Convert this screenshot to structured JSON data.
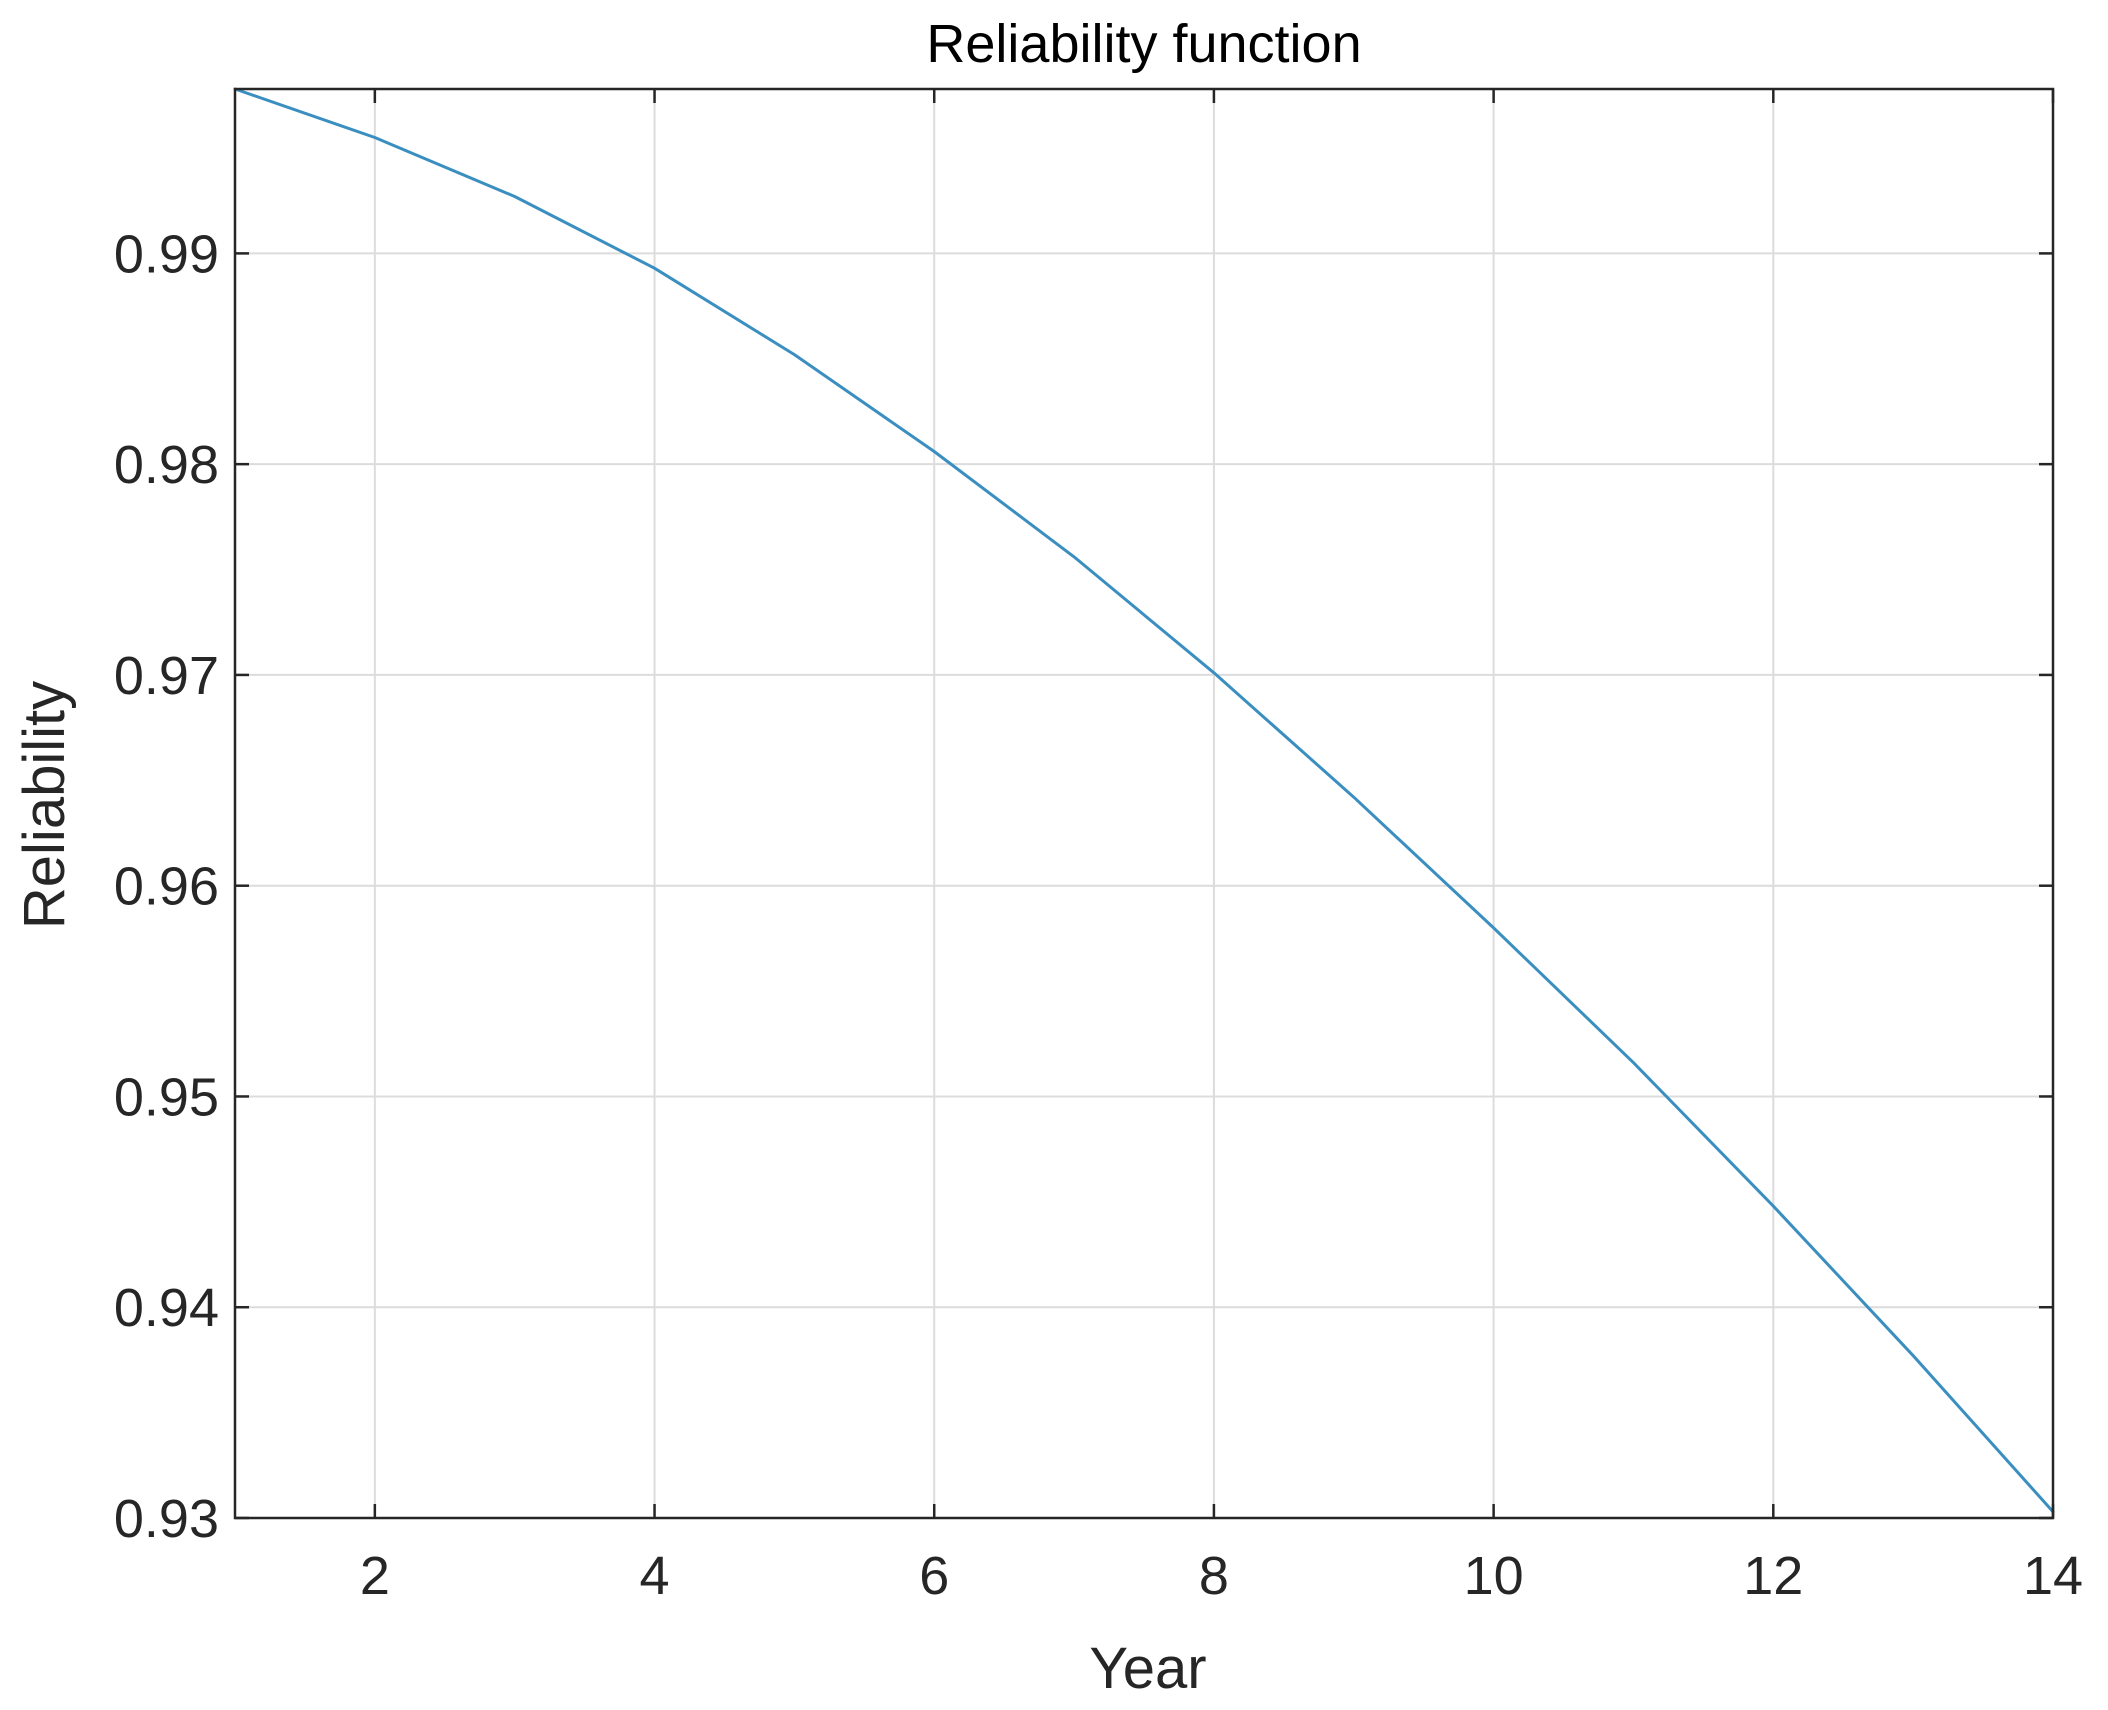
{
  "chart_data": {
    "type": "line",
    "title": "Reliability function",
    "xlabel": "Year",
    "ylabel": "Reliability",
    "xlim": [
      1,
      14
    ],
    "ylim": [
      0.93,
      0.9978
    ],
    "xticks": [
      2,
      4,
      6,
      8,
      10,
      12,
      14
    ],
    "xtick_labels": [
      "2",
      "4",
      "6",
      "8",
      "10",
      "12",
      "14"
    ],
    "yticks": [
      0.93,
      0.94,
      0.95,
      0.96,
      0.97,
      0.98,
      0.99
    ],
    "ytick_labels": [
      "0.93",
      "0.94",
      "0.95",
      "0.96",
      "0.97",
      "0.98",
      "0.99"
    ],
    "grid": true,
    "line_color": "#3a8fc0",
    "series": [
      {
        "x": [
          1,
          2,
          3,
          4,
          5,
          6,
          7,
          8,
          9,
          10,
          11,
          12,
          13,
          14
        ],
        "y": [
          0.9978,
          0.9955,
          0.9927,
          0.9893,
          0.9852,
          0.9806,
          0.9756,
          0.9701,
          0.9642,
          0.958,
          0.9516,
          0.9448,
          0.9377,
          0.9303
        ]
      }
    ]
  }
}
